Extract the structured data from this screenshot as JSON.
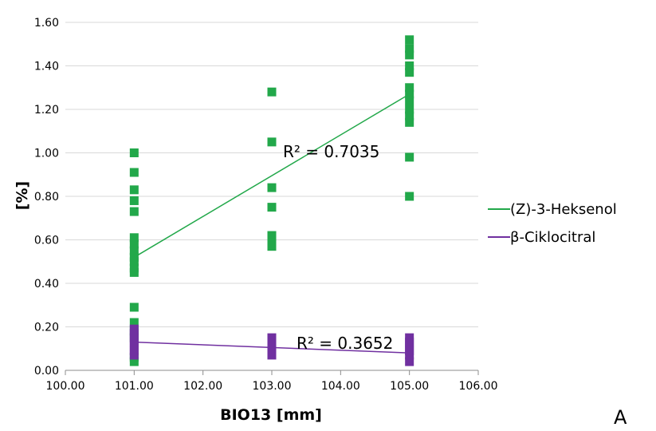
{
  "chart_data": {
    "type": "scatter",
    "title": "",
    "xlabel": "BIO13 [mm]",
    "ylabel": "[%]",
    "xlim": [
      100,
      106
    ],
    "ylim": [
      0,
      1.6
    ],
    "x_ticks": [
      "100.00",
      "101.00",
      "102.00",
      "103.00",
      "104.00",
      "105.00",
      "106.00"
    ],
    "y_ticks": [
      "0.00",
      "0.20",
      "0.40",
      "0.60",
      "0.80",
      "1.00",
      "1.20",
      "1.40",
      "1.60"
    ],
    "grid": "horizontal",
    "legend_position": "right",
    "panel_label": "A",
    "series": [
      {
        "name": "(Z)-3-Heksenol",
        "color": "#22a84a",
        "points": [
          {
            "x": 101,
            "y": 1.0
          },
          {
            "x": 101,
            "y": 0.91
          },
          {
            "x": 101,
            "y": 0.83
          },
          {
            "x": 101,
            "y": 0.78
          },
          {
            "x": 101,
            "y": 0.73
          },
          {
            "x": 101,
            "y": 0.61
          },
          {
            "x": 101,
            "y": 0.58
          },
          {
            "x": 101,
            "y": 0.55
          },
          {
            "x": 101,
            "y": 0.52
          },
          {
            "x": 101,
            "y": 0.5
          },
          {
            "x": 101,
            "y": 0.47
          },
          {
            "x": 101,
            "y": 0.45
          },
          {
            "x": 101,
            "y": 0.29
          },
          {
            "x": 101,
            "y": 0.22
          },
          {
            "x": 101,
            "y": 0.18
          },
          {
            "x": 101,
            "y": 0.15
          },
          {
            "x": 101,
            "y": 0.06
          },
          {
            "x": 101,
            "y": 0.04
          },
          {
            "x": 103,
            "y": 1.28
          },
          {
            "x": 103,
            "y": 1.05
          },
          {
            "x": 103,
            "y": 0.84
          },
          {
            "x": 103,
            "y": 0.75
          },
          {
            "x": 103,
            "y": 0.62
          },
          {
            "x": 103,
            "y": 0.59
          },
          {
            "x": 103,
            "y": 0.57
          },
          {
            "x": 105,
            "y": 1.52
          },
          {
            "x": 105,
            "y": 1.48
          },
          {
            "x": 105,
            "y": 1.45
          },
          {
            "x": 105,
            "y": 1.4
          },
          {
            "x": 105,
            "y": 1.37
          },
          {
            "x": 105,
            "y": 1.3
          },
          {
            "x": 105,
            "y": 1.27
          },
          {
            "x": 105,
            "y": 1.24
          },
          {
            "x": 105,
            "y": 1.2
          },
          {
            "x": 105,
            "y": 1.17
          },
          {
            "x": 105,
            "y": 1.14
          },
          {
            "x": 105,
            "y": 0.98
          },
          {
            "x": 105,
            "y": 0.8
          }
        ],
        "trendline": {
          "x": [
            101,
            105
          ],
          "y": [
            0.52,
            1.27
          ],
          "r2_label": "R² = 0.7035"
        }
      },
      {
        "name": "β-Ciklocitral",
        "color": "#7030a0",
        "points": [
          {
            "x": 101,
            "y": 0.19
          },
          {
            "x": 101,
            "y": 0.17
          },
          {
            "x": 101,
            "y": 0.15
          },
          {
            "x": 101,
            "y": 0.13
          },
          {
            "x": 101,
            "y": 0.11
          },
          {
            "x": 101,
            "y": 0.09
          },
          {
            "x": 101,
            "y": 0.07
          },
          {
            "x": 103,
            "y": 0.15
          },
          {
            "x": 103,
            "y": 0.13
          },
          {
            "x": 103,
            "y": 0.11
          },
          {
            "x": 103,
            "y": 0.09
          },
          {
            "x": 103,
            "y": 0.07
          },
          {
            "x": 105,
            "y": 0.15
          },
          {
            "x": 105,
            "y": 0.13
          },
          {
            "x": 105,
            "y": 0.11
          },
          {
            "x": 105,
            "y": 0.09
          },
          {
            "x": 105,
            "y": 0.07
          },
          {
            "x": 105,
            "y": 0.04
          }
        ],
        "trendline": {
          "x": [
            101,
            105
          ],
          "y": [
            0.13,
            0.08
          ],
          "r2_label": "R² = 0.3652"
        }
      }
    ]
  }
}
